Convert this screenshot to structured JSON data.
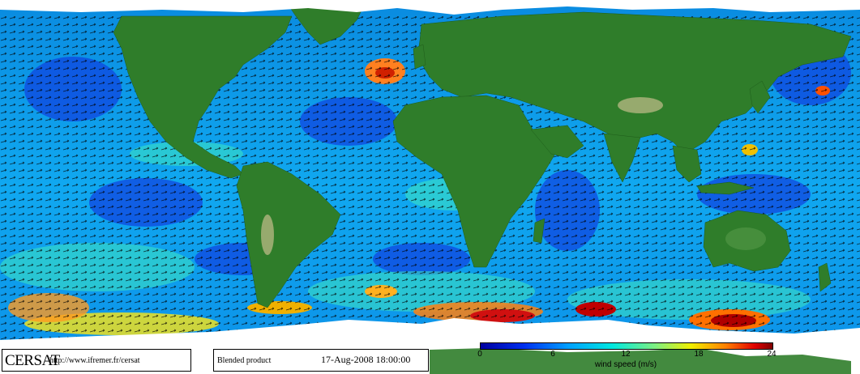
{
  "map": {
    "product": "Blended product",
    "logo_text": "CERSAT",
    "url": "http://www.ifremer.fr/cersat",
    "datetime": "17-Aug-2008 18:00:00"
  },
  "legend": {
    "label": "wind speed (m/s)",
    "ticks": [
      "0",
      "6",
      "12",
      "18",
      "24"
    ],
    "tick_values": [
      0,
      6,
      12,
      18,
      24
    ],
    "range": [
      0,
      24
    ],
    "colors": [
      "#0000a0",
      "#0040ff",
      "#00c0ff",
      "#60e0a0",
      "#f0f000",
      "#ff8000",
      "#d00000",
      "#800000"
    ]
  },
  "colors": {
    "land": "#2f7d2a",
    "land_dark": "#1e5c1a",
    "ice": "#ffffff",
    "arrows": "#000000"
  }
}
